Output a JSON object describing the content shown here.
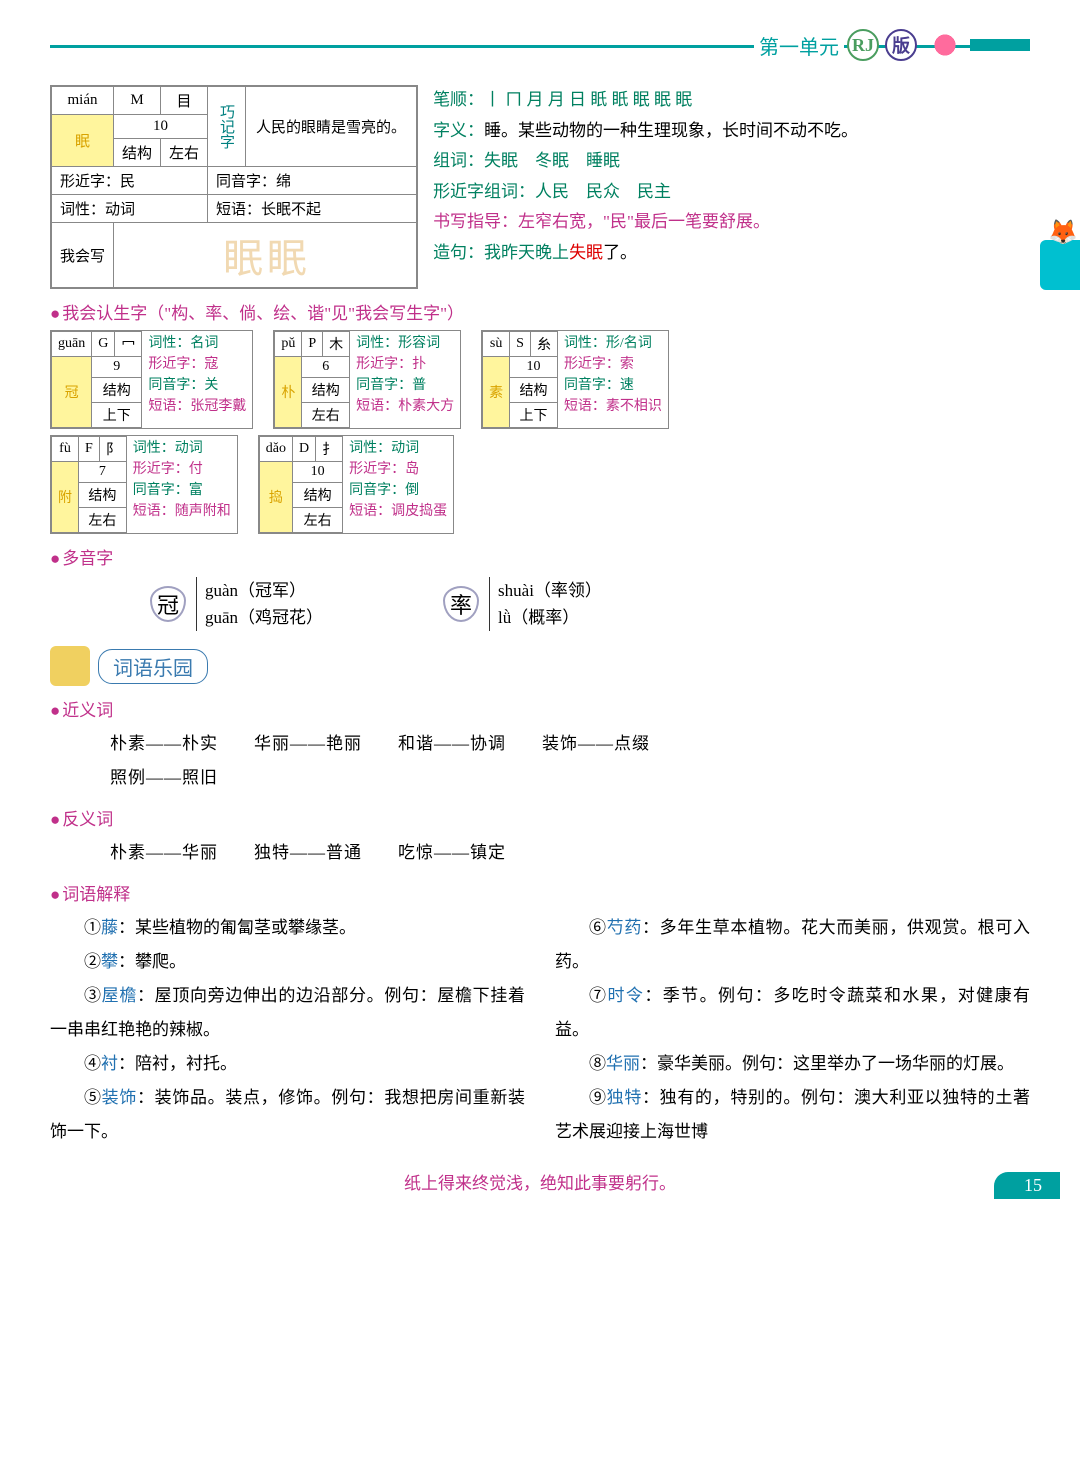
{
  "header": {
    "unit": "第一单元",
    "rj": "RJ",
    "ban": "版"
  },
  "mainChar": {
    "pinyin": "mián",
    "cap": "M",
    "rad": "目",
    "strokes": "10",
    "structLabel": "结构",
    "struct": "左右",
    "char": "眠",
    "qiaoji": "巧记字",
    "qiaojiText": "人民的眼睛是雪亮的。",
    "xjz": "形近字：民",
    "tyz": "同音字：绵",
    "cix": "词性：动词",
    "dy": "短语：长眠不起",
    "whx": "我会写",
    "bishun": "笔顺：丨 ㄇ 月 月 日 眂 眂 眠 眠 眠",
    "ziyi": "字义：睡。某些动物的一种生理现象，长时间不动不吃。",
    "zuci": "组词：失眠　冬眠　睡眠",
    "xjzzc": "形近字组词：人民　民众　民主",
    "sxzd": "书写指导：左窄右宽，\"民\"最后一笔要舒展。",
    "zaoju1": "造句：我昨天晚上",
    "zaoju2": "失眠",
    "zaoju3": "了。"
  },
  "recog": {
    "title": "我会认生字（\"构、率、倘、绘、谐\"见\"我会写生字\"）",
    "cards": [
      {
        "py": "guān",
        "cap": "G",
        "rad": "冖",
        "n": "9",
        "sl": "结构",
        "s": "上下",
        "c": "冠",
        "cx": "词性：名词",
        "xj": "形近字：寇",
        "ty": "同音字：关",
        "dy": "短语：张冠李戴"
      },
      {
        "py": "pǔ",
        "cap": "P",
        "rad": "木",
        "n": "6",
        "sl": "结构",
        "s": "左右",
        "c": "朴",
        "cx": "词性：形容词",
        "xj": "形近字：扑",
        "ty": "同音字：普",
        "dy": "短语：朴素大方"
      },
      {
        "py": "sù",
        "cap": "S",
        "rad": "糸",
        "n": "10",
        "sl": "结构",
        "s": "上下",
        "c": "素",
        "cx": "词性：形/名词",
        "xj": "形近字：索",
        "ty": "同音字：速",
        "dy": "短语：素不相识"
      },
      {
        "py": "fù",
        "cap": "F",
        "rad": "阝",
        "n": "7",
        "sl": "结构",
        "s": "左右",
        "c": "附",
        "cx": "词性：动词",
        "xj": "形近字：付",
        "ty": "同音字：富",
        "dy": "短语：随声附和"
      },
      {
        "py": "dǎo",
        "cap": "D",
        "rad": "扌",
        "n": "10",
        "sl": "结构",
        "s": "左右",
        "c": "捣",
        "cx": "词性：动词",
        "xj": "形近字：岛",
        "ty": "同音字：倒",
        "dy": "短语：调皮捣蛋"
      }
    ]
  },
  "poly": {
    "title": "多音字",
    "items": [
      {
        "c": "冠",
        "r1": "guàn（冠军）",
        "r2": "guān（鸡冠花）"
      },
      {
        "c": "率",
        "r1": "shuài（率领）",
        "r2": "lǜ（概率）"
      }
    ]
  },
  "yuan": "词语乐园",
  "jyc": {
    "title": "近义词",
    "lines": [
      "朴素——朴实　　华丽——艳丽　　和谐——协调　　装饰——点缀",
      "照例——照旧"
    ]
  },
  "fyc": {
    "title": "反义词",
    "lines": [
      "朴素——华丽　　独特——普通　　吃惊——镇定"
    ]
  },
  "jieshi": {
    "title": "词语解释",
    "left": [
      {
        "n": "①",
        "t": "藤",
        "d": "：某些植物的匍匐茎或攀缘茎。"
      },
      {
        "n": "②",
        "t": "攀",
        "d": "：攀爬。"
      },
      {
        "n": "③",
        "t": "屋檐",
        "d": "：屋顶向旁边伸出的边沿部分。例句：屋檐下挂着一串串红艳艳的辣椒。"
      },
      {
        "n": "④",
        "t": "衬",
        "d": "：陪衬，衬托。"
      },
      {
        "n": "⑤",
        "t": "装饰",
        "d": "：装饰品。装点，修饰。例句：我想把房间重新装饰一下。"
      }
    ],
    "right": [
      {
        "n": "⑥",
        "t": "芍药",
        "d": "：多年生草本植物。花大而美丽，供观赏。根可入药。"
      },
      {
        "n": "⑦",
        "t": "时令",
        "d": "：季节。例句：多吃时令蔬菜和水果，对健康有益。"
      },
      {
        "n": "⑧",
        "t": "华丽",
        "d": "：豪华美丽。例句：这里举办了一场华丽的灯展。"
      },
      {
        "n": "⑨",
        "t": "独特",
        "d": "：独有的，特别的。例句：澳大利亚以独特的土著艺术展迎接上海世博"
      }
    ]
  },
  "footer": {
    "quote": "纸上得来终觉浅，绝知此事要躬行。",
    "page": "15"
  }
}
